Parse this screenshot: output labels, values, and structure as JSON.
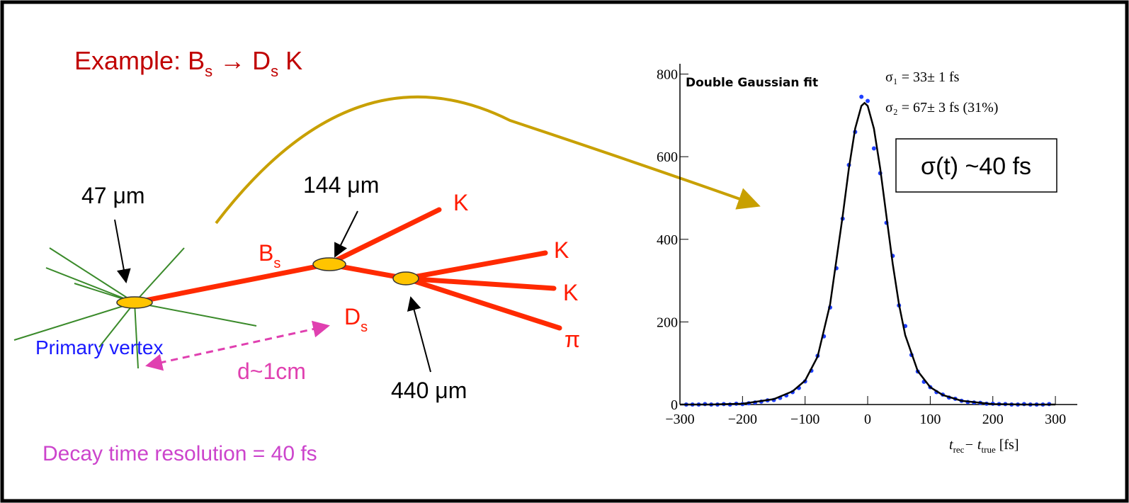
{
  "slide": {
    "title": {
      "main": "Example: B",
      "sub1": "s",
      "arrow": " → D",
      "sub2": "s",
      "end": " K"
    },
    "labels": {
      "pv_size": "47 μm",
      "bs_vertex": "144 μm",
      "ds_vertex": "440 μm",
      "bs": {
        "main": "B",
        "sub": "s"
      },
      "ds": {
        "main": "D",
        "sub": "s"
      },
      "k1": "K",
      "k2": "K",
      "k3": "K",
      "pi": "π",
      "primary_vertex": "Primary vertex",
      "distance": "d~1cm"
    },
    "resolution_note": "Decay time resolution = 40 fs",
    "sigma_box": "σ(t) ~40 fs"
  },
  "chart_data": {
    "type": "scatter",
    "annotation": "Double Gaussian fit",
    "fit_params": [
      "σ₁ = 33± 1 fs",
      "σ₂ = 67± 3 fs (31%)"
    ],
    "x_label": {
      "t1": "t",
      "sub1": "rec",
      "mid": "− t",
      "sub2": "true",
      "unit": " [fs]"
    },
    "xlim": [
      -300,
      335
    ],
    "ylim": [
      0,
      825
    ],
    "xticks": [
      {
        "value": -300,
        "label": "−300"
      },
      {
        "value": -200,
        "label": "−200"
      },
      {
        "value": -100,
        "label": "−100"
      },
      0,
      100,
      200,
      300
    ],
    "yticks": [
      0,
      200,
      400,
      600,
      800
    ],
    "series": [
      {
        "mode": "markers",
        "color": "#1f3fff",
        "x": [
          -290,
          -280,
          -270,
          -260,
          -250,
          -240,
          -230,
          -220,
          -210,
          -200,
          -190,
          -180,
          -170,
          -160,
          -150,
          -140,
          -130,
          -120,
          -110,
          -100,
          -90,
          -80,
          -70,
          -60,
          -50,
          -40,
          -30,
          -20,
          -10,
          0,
          10,
          20,
          30,
          40,
          50,
          60,
          70,
          80,
          90,
          100,
          110,
          120,
          130,
          140,
          150,
          160,
          170,
          180,
          190,
          200,
          210,
          220,
          230,
          240,
          250,
          260,
          270,
          280,
          290
        ],
        "values": [
          0,
          0,
          0,
          1,
          0,
          0,
          1,
          0,
          2,
          1,
          3,
          5,
          7,
          10,
          11,
          16,
          22,
          30,
          40,
          56,
          82,
          118,
          165,
          235,
          330,
          450,
          580,
          660,
          745,
          735,
          620,
          560,
          440,
          360,
          240,
          190,
          120,
          80,
          55,
          42,
          30,
          24,
          17,
          14,
          9,
          6,
          5,
          4,
          2,
          2,
          1,
          1,
          0,
          0,
          1,
          0,
          0,
          0,
          1
        ]
      },
      {
        "mode": "line",
        "color": "#000000",
        "x": [
          -300,
          -250,
          -200,
          -150,
          -120,
          -100,
          -80,
          -60,
          -40,
          -30,
          -20,
          -10,
          -5,
          0,
          10,
          20,
          30,
          40,
          50,
          60,
          80,
          100,
          120,
          150,
          200,
          250,
          300
        ],
        "values": [
          0,
          0,
          2,
          13,
          32,
          58,
          116,
          243,
          456,
          572,
          668,
          723,
          730,
          723,
          668,
          572,
          456,
          341,
          243,
          168,
          81,
          42,
          23,
          9,
          1,
          0,
          0
        ]
      }
    ]
  }
}
